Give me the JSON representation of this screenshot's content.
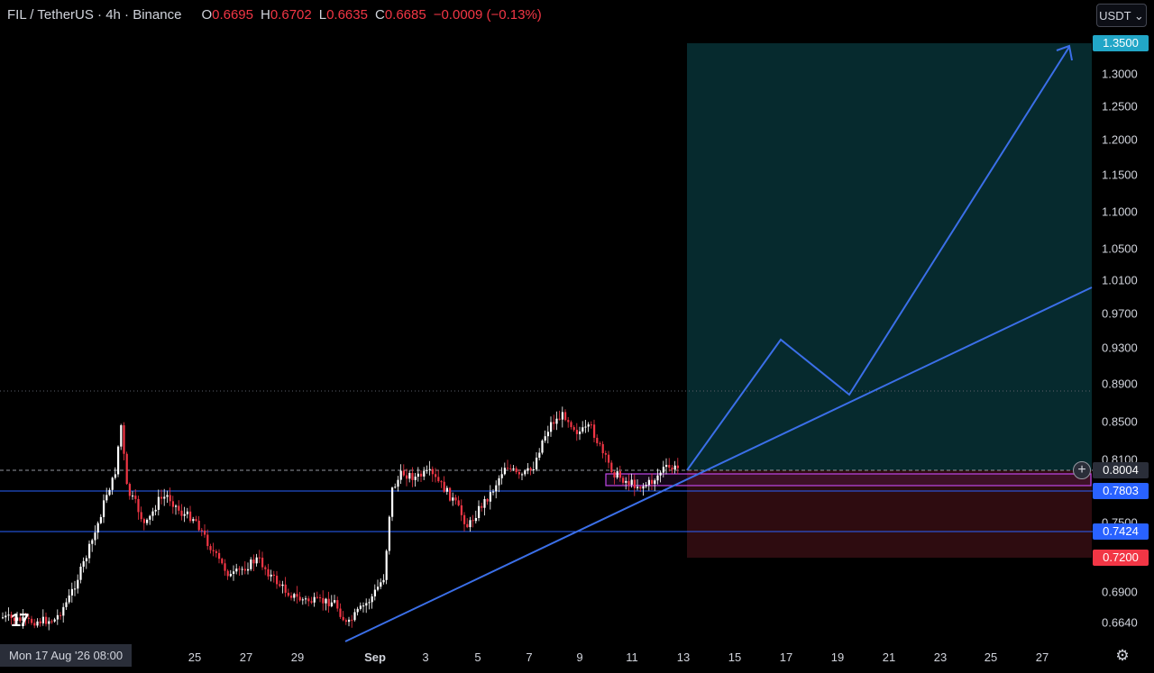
{
  "header": {
    "symbol": "FIL / TetherUS · 4h · Binance",
    "open_label": "O",
    "open": "0.6695",
    "high_label": "H",
    "high": "0.6702",
    "low_label": "L",
    "low": "0.6635",
    "close_label": "C",
    "close": "0.6685",
    "change": "−0.0009 (−0.13%)"
  },
  "currency": "USDT ⌄",
  "price_axis": {
    "ticks": [
      "1.3000",
      "1.2500",
      "1.2000",
      "1.1500",
      "1.1000",
      "1.0500",
      "1.0100",
      "0.9700",
      "0.9300",
      "0.8900",
      "0.8500",
      "0.8100",
      "0.7500",
      "0.6900",
      "0.6640"
    ],
    "tags": [
      {
        "label": "1.3500",
        "color": "#22a6c7",
        "price": 1.35
      },
      {
        "label": "0.8004",
        "color": "#2a2e39",
        "price": 0.8004
      },
      {
        "label": "0.7803",
        "color": "#2962ff",
        "price": 0.7803
      },
      {
        "label": "0.7424",
        "color": "#2962ff",
        "price": 0.7424
      },
      {
        "label": "0.7200",
        "color": "#f23645",
        "price": 0.72
      }
    ]
  },
  "time_axis": {
    "cursor_date": "Mon 17 Aug '26   08:00",
    "labels": [
      "25",
      "27",
      "29",
      "Sep",
      "3",
      "5",
      "7",
      "9",
      "11",
      "13",
      "15",
      "17",
      "19",
      "21",
      "23",
      "25",
      "27"
    ]
  },
  "colors": {
    "up": "#ffffff",
    "down": "#f23645",
    "profit_zone": "#062a2e",
    "loss_zone": "#2e0c10",
    "trend": "#3b6fe8",
    "level_line": "#2962ff",
    "box": "#c147e9"
  },
  "chart_data": {
    "type": "candlestick",
    "instrument": "FIL / TetherUS",
    "interval": "4h",
    "exchange": "Binance",
    "levels": [
      0.8004,
      0.7803,
      0.7424
    ],
    "position": {
      "entry": 0.8004,
      "target": 1.35,
      "stop": 0.72
    },
    "ohlc_last": {
      "open": 0.6695,
      "high": 0.6702,
      "low": 0.6635,
      "close": 0.6685
    }
  },
  "icons": {
    "plus": "plus-circle-icon",
    "settings": "gear-icon",
    "logo": "tradingview-logo"
  }
}
